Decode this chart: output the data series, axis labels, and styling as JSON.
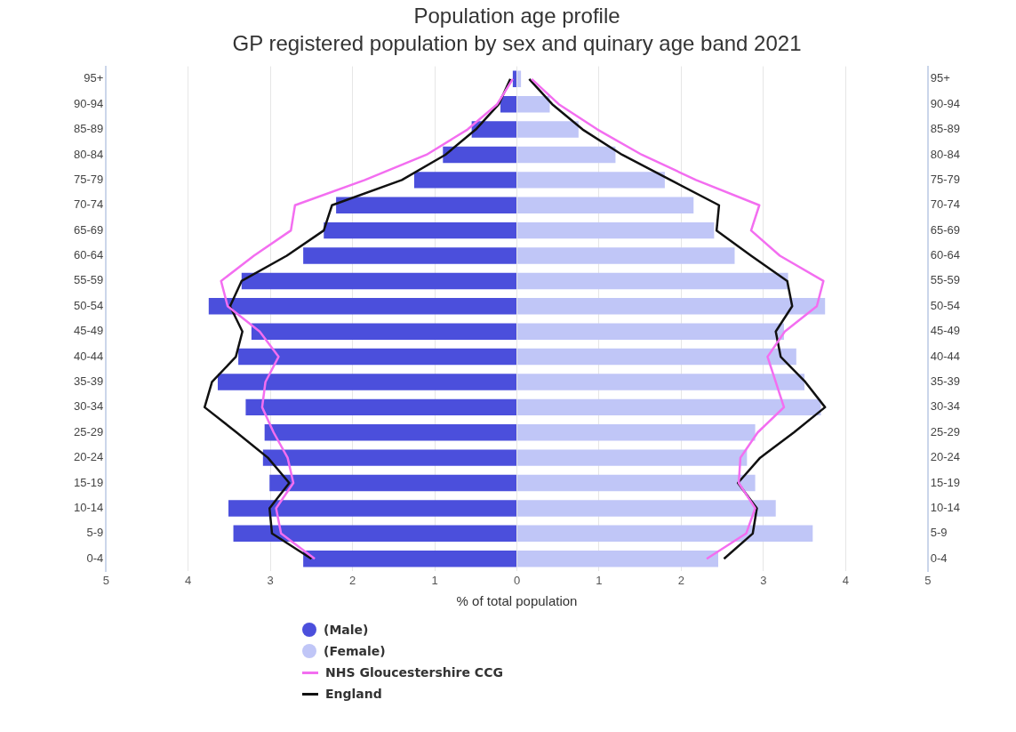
{
  "chart_data": {
    "type": "bar",
    "orientation": "horizontal",
    "stacked": true,
    "title": "Population age profile",
    "subtitle": "GP registered population by sex and quinary age band 2021",
    "xlabel": "% of total population",
    "categories": [
      "95+",
      "90-94",
      "85-89",
      "80-84",
      "75-79",
      "70-74",
      "65-69",
      "60-64",
      "55-59",
      "50-54",
      "45-49",
      "40-44",
      "35-39",
      "30-34",
      "25-29",
      "20-24",
      "15-19",
      "10-14",
      "5-9",
      "0-4"
    ],
    "xlim": [
      -5,
      5
    ],
    "xticks": [
      {
        "value": -5,
        "label": "5"
      },
      {
        "value": -4,
        "label": "4"
      },
      {
        "value": -3,
        "label": "3"
      },
      {
        "value": -2,
        "label": "2"
      },
      {
        "value": -1,
        "label": "1"
      },
      0,
      1,
      2,
      3,
      4,
      5
    ],
    "grid": "x",
    "legend": "bottom",
    "series": [
      {
        "name": "(Male)",
        "color": "#4b4fdc",
        "values": [
          -0.05,
          -0.2,
          -0.55,
          -0.9,
          -1.25,
          -2.2,
          -2.35,
          -2.6,
          -3.35,
          -3.75,
          -3.23,
          -3.39,
          -3.64,
          -3.3,
          -3.07,
          -3.09,
          -3.01,
          -3.51,
          -3.45,
          -2.6
        ]
      },
      {
        "name": "(Female)",
        "color": "#c0c6f7",
        "values": [
          0.05,
          0.4,
          0.75,
          1.2,
          1.8,
          2.15,
          2.4,
          2.65,
          3.3,
          3.75,
          3.25,
          3.4,
          3.5,
          3.7,
          2.9,
          2.8,
          2.9,
          3.15,
          3.6,
          2.45
        ]
      },
      {
        "name": "NHS Gloucestershire CCG",
        "type": "line",
        "color": "#f36ef0",
        "values": [
          -0.05,
          -0.24,
          -0.6,
          -1.1,
          -1.85,
          -2.7,
          -2.75,
          -3.2,
          -3.6,
          -3.52,
          -3.13,
          -2.9,
          -3.06,
          -3.1,
          -2.96,
          -2.79,
          -2.72,
          -2.93,
          -2.87,
          -2.46
        ]
      },
      {
        "type": "line",
        "color": "#f36ef0",
        "values": [
          0.18,
          0.51,
          0.98,
          1.52,
          2.18,
          2.95,
          2.85,
          3.2,
          3.73,
          3.65,
          3.26,
          3.05,
          3.15,
          3.25,
          2.93,
          2.72,
          2.7,
          2.9,
          2.79,
          2.31
        ]
      },
      {
        "name": "England",
        "type": "line",
        "color": "#111111",
        "values": [
          -0.08,
          -0.22,
          -0.5,
          -0.87,
          -1.4,
          -2.25,
          -2.35,
          -2.8,
          -3.35,
          -3.49,
          -3.34,
          -3.42,
          -3.71,
          -3.8,
          -3.41,
          -3.03,
          -2.77,
          -3.01,
          -2.98,
          -2.5
        ]
      },
      {
        "type": "line",
        "color": "#111111",
        "values": [
          0.15,
          0.43,
          0.8,
          1.28,
          1.87,
          2.46,
          2.43,
          2.85,
          3.29,
          3.35,
          3.15,
          3.21,
          3.51,
          3.75,
          3.37,
          2.96,
          2.69,
          2.92,
          2.87,
          2.52
        ]
      }
    ]
  }
}
